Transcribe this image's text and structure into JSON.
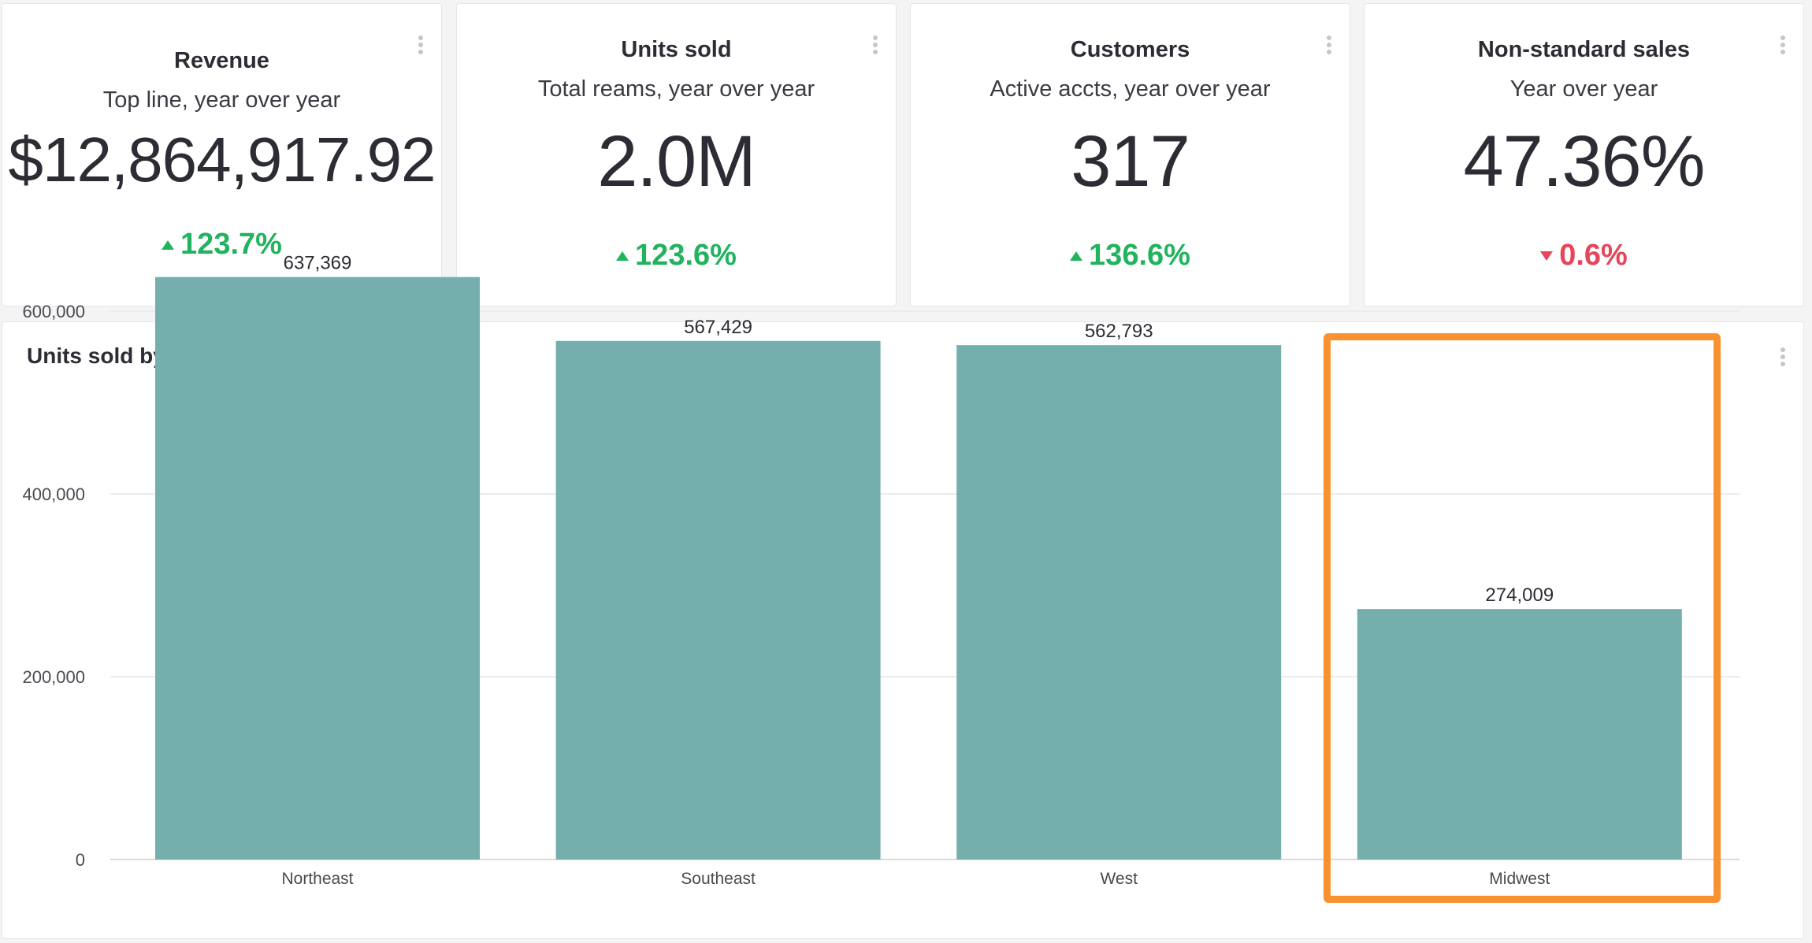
{
  "kpis": [
    {
      "title": "Revenue",
      "subtitle": "Top line, year over year",
      "value": "$12,864,917.92",
      "delta": "123.7%",
      "direction": "up"
    },
    {
      "title": "Units sold",
      "subtitle": "Total reams, year over year",
      "value": "2.0M",
      "delta": "123.6%",
      "direction": "up"
    },
    {
      "title": "Customers",
      "subtitle": "Active accts, year over year",
      "value": "317",
      "delta": "136.6%",
      "direction": "up"
    },
    {
      "title": "Non-standard sales",
      "subtitle": "Year over year",
      "value": "47.36%",
      "delta": "0.6%",
      "direction": "down"
    }
  ],
  "chart": {
    "title": "Units sold by region",
    "menu_icon": "kebab-menu-icon",
    "highlight_color": "#f7922f"
  },
  "colors": {
    "bar": "#74afad",
    "positive": "#22b35e",
    "negative": "#e6455a"
  },
  "chart_data": {
    "type": "bar",
    "title": "Units sold by region",
    "categories": [
      "Northeast",
      "Southeast",
      "West",
      "Midwest"
    ],
    "values": [
      637369,
      567429,
      562793,
      274009
    ],
    "value_labels": [
      "637,369",
      "567,429",
      "562,793",
      "274,009"
    ],
    "ylim": [
      0,
      700000
    ],
    "yticks": [
      0,
      200000,
      400000,
      600000
    ],
    "ytick_labels": [
      "0",
      "200,000",
      "400,000",
      "600,000"
    ],
    "grid": true,
    "highlighted_category": "Midwest"
  }
}
